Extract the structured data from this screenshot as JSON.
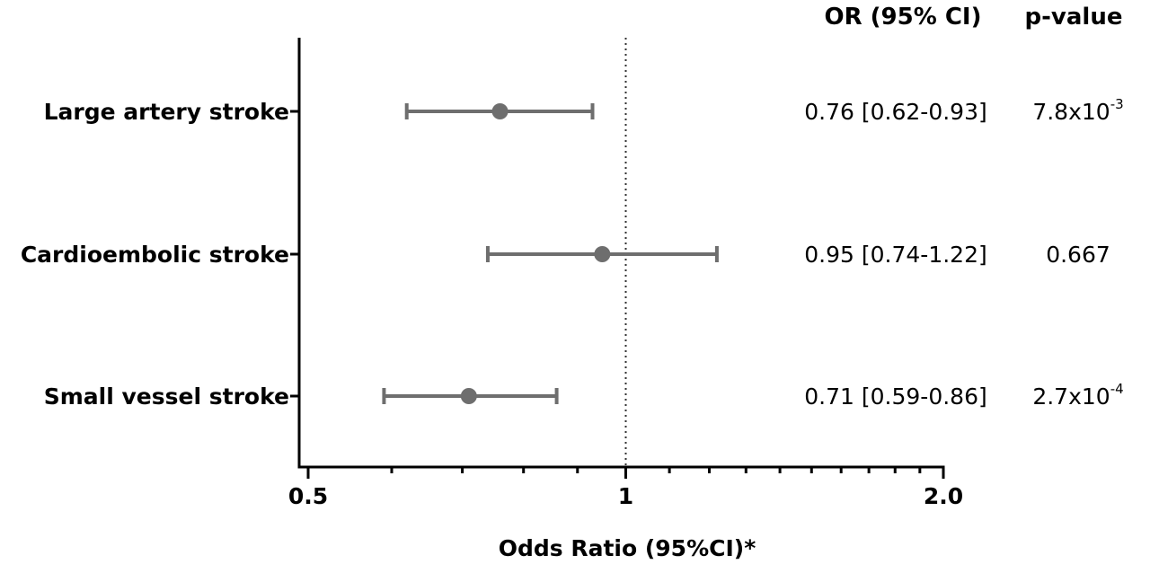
{
  "chart_data": {
    "type": "forest",
    "scale": "log",
    "xlabel": "Odds Ratio (95%CI)*",
    "xlim": [
      0.5,
      2.0
    ],
    "reference_line": 1,
    "tick_labels": [
      {
        "value": 0.5,
        "label": "0.5"
      },
      {
        "value": 1,
        "label": "1"
      },
      {
        "value": 2.0,
        "label": "2.0"
      }
    ],
    "minor_ticks": [
      0.6,
      0.7,
      0.8,
      0.9,
      1.1,
      1.2,
      1.3,
      1.4,
      1.5,
      1.6,
      1.7,
      1.8,
      1.9
    ],
    "columns": {
      "or_header": "OR (95% CI)",
      "p_header": "p-value"
    },
    "rows": [
      {
        "category": "Large artery stroke",
        "or": 0.76,
        "lower": 0.62,
        "upper": 0.93,
        "or_text": "0.76 [0.62-0.93]",
        "p_base": "7.8x10",
        "p_exp": "-3"
      },
      {
        "category": "Cardioembolic stroke",
        "or": 0.95,
        "lower": 0.74,
        "upper": 1.22,
        "or_text": "0.95 [0.74-1.22]",
        "p_base": "0.667",
        "p_exp": ""
      },
      {
        "category": "Small vessel stroke",
        "or": 0.71,
        "lower": 0.59,
        "upper": 0.86,
        "or_text": "0.71 [0.59-0.86]",
        "p_base": "2.7x10",
        "p_exp": "-4"
      }
    ],
    "colors": {
      "marker": "#6e6e6e",
      "axis": "#000000",
      "reference": "#333333"
    }
  }
}
